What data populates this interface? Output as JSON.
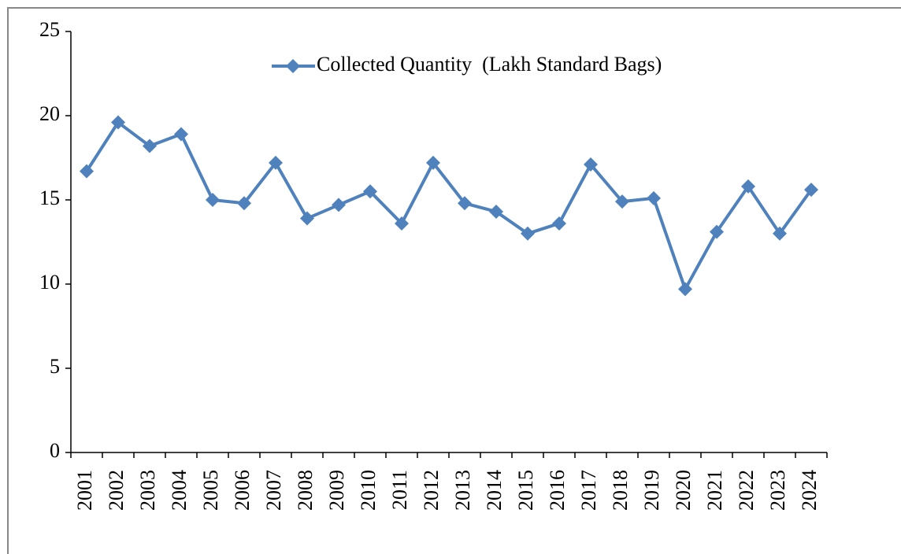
{
  "chart_data": {
    "type": "line",
    "categories": [
      "2001",
      "2002",
      "2003",
      "2004",
      "2005",
      "2006",
      "2007",
      "2008",
      "2009",
      "2010",
      "2011",
      "2012",
      "2013",
      "2014",
      "2015",
      "2016",
      "2017",
      "2018",
      "2019",
      "2020",
      "2021",
      "2022",
      "2023",
      "2024"
    ],
    "series": [
      {
        "name": "Collected Quantity  (Lakh Standard Bags)",
        "color": "#4f81bd",
        "values": [
          16.7,
          19.6,
          18.2,
          18.9,
          15.0,
          14.8,
          17.2,
          13.9,
          14.7,
          15.5,
          13.6,
          17.2,
          14.8,
          14.3,
          13.0,
          13.6,
          17.1,
          14.9,
          15.1,
          9.7,
          13.1,
          15.8,
          13.0,
          15.6
        ]
      }
    ],
    "ylim": [
      0,
      25
    ],
    "yticks": [
      0,
      5,
      10,
      15,
      20,
      25
    ],
    "grid": false,
    "legend": "top"
  }
}
